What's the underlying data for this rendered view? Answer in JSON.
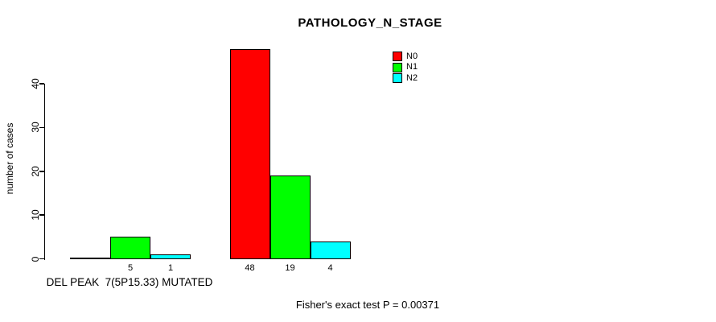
{
  "chart_data": {
    "type": "bar",
    "title": "PATHOLOGY_N_STAGE",
    "ylabel": "number of cases",
    "caption": "Fisher's exact test P = 0.00371",
    "categories": [
      "DEL PEAK  7(5P15.33) MUTATED",
      ""
    ],
    "series": [
      {
        "name": "N0",
        "color": "#ff0000",
        "values": [
          0,
          48
        ]
      },
      {
        "name": "N1",
        "color": "#00ff00",
        "values": [
          5,
          19
        ]
      },
      {
        "name": "N2",
        "color": "#00ffff",
        "values": [
          1,
          4
        ]
      }
    ],
    "yticks": [
      0,
      10,
      20,
      30,
      40
    ],
    "ylim": [
      0,
      40
    ],
    "grid": false,
    "legend_position": "top-right",
    "bar_value_labels": "shown below axis for each non-zero bar"
  }
}
